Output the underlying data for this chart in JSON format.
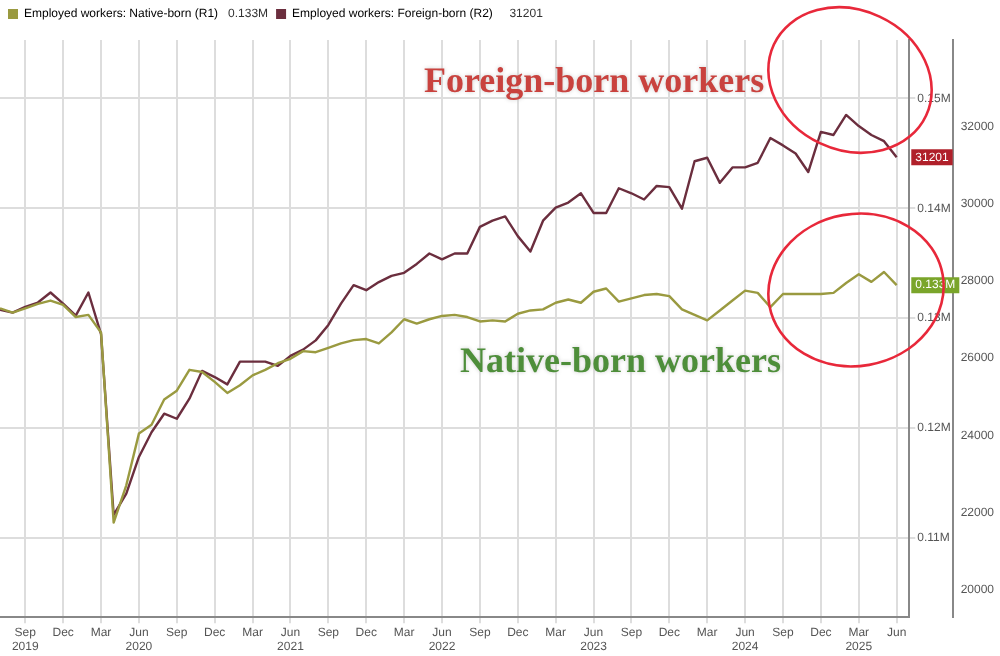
{
  "chart_data": {
    "type": "line",
    "x": [
      "2019-07",
      "2019-08",
      "2019-09",
      "2019-10",
      "2019-11",
      "2019-12",
      "2020-01",
      "2020-02",
      "2020-03",
      "2020-04",
      "2020-05",
      "2020-06",
      "2020-07",
      "2020-08",
      "2020-09",
      "2020-10",
      "2020-11",
      "2020-12",
      "2021-01",
      "2021-02",
      "2021-03",
      "2021-04",
      "2021-05",
      "2021-06",
      "2021-07",
      "2021-08",
      "2021-09",
      "2021-10",
      "2021-11",
      "2021-12",
      "2022-01",
      "2022-02",
      "2022-03",
      "2022-04",
      "2022-05",
      "2022-06",
      "2022-07",
      "2022-08",
      "2022-09",
      "2022-10",
      "2022-11",
      "2022-12",
      "2023-01",
      "2023-02",
      "2023-03",
      "2023-04",
      "2023-05",
      "2023-06",
      "2023-07",
      "2023-08",
      "2023-09",
      "2023-10",
      "2023-11",
      "2023-12",
      "2024-01",
      "2024-02",
      "2024-03",
      "2024-04",
      "2024-05",
      "2024-06",
      "2024-07",
      "2024-08",
      "2024-09",
      "2024-10",
      "2024-11",
      "2024-12",
      "2025-01",
      "2025-02",
      "2025-03",
      "2025-04",
      "2025-05",
      "2025-06"
    ],
    "series": [
      {
        "name": "Employed workers: Native-born (R1)",
        "color": "#9a9a40",
        "axis": "y",
        "values": [
          0.1309,
          0.1305,
          0.1309,
          0.1313,
          0.1316,
          0.1312,
          0.1301,
          0.1303,
          0.1287,
          0.1114,
          0.1148,
          0.1195,
          0.1203,
          0.1226,
          0.1234,
          0.1253,
          0.1251,
          0.1242,
          0.1232,
          0.1239,
          0.1248,
          0.1253,
          0.1259,
          0.1263,
          0.127,
          0.1269,
          0.1273,
          0.1277,
          0.128,
          0.1281,
          0.1277,
          0.1287,
          0.1299,
          0.1295,
          0.1299,
          0.1302,
          0.1303,
          0.1301,
          0.1297,
          0.1298,
          0.1297,
          0.1304,
          0.1307,
          0.1308,
          0.1314,
          0.1317,
          0.1314,
          0.1324,
          0.1327,
          0.1315,
          0.1318,
          0.1321,
          0.1322,
          0.132,
          0.1308,
          0.1303,
          0.1298,
          0.1307,
          0.1316,
          0.1325,
          0.1323,
          0.131,
          0.1322,
          0.1322,
          0.1322,
          0.1322,
          0.1323,
          0.1332,
          0.134,
          0.1333,
          0.1342,
          0.133
        ],
        "value_labels": [
          null,
          null,
          null,
          null,
          null,
          null,
          null,
          null,
          null,
          null,
          null,
          null,
          null,
          null,
          null,
          null,
          null,
          null,
          null,
          null,
          null,
          null,
          null,
          null,
          null,
          null,
          null,
          null,
          null,
          null,
          null,
          null,
          null,
          null,
          null,
          null,
          null,
          null,
          null,
          null,
          null,
          null,
          null,
          null,
          null,
          null,
          null,
          null,
          null,
          null,
          null,
          null,
          null,
          null,
          null,
          null,
          null,
          null,
          null,
          null,
          null,
          null,
          null,
          null,
          null,
          null,
          null,
          null,
          null,
          null,
          null,
          "0.133M"
        ]
      },
      {
        "name": "Employed workers: Foreign-born (R2)",
        "color": "#6b2e3e",
        "axis": "y2",
        "values": [
          27250,
          27180,
          27330,
          27440,
          27700,
          27410,
          27100,
          27700,
          26620,
          21940,
          22490,
          23440,
          24080,
          24560,
          24430,
          24950,
          25670,
          25510,
          25320,
          25910,
          25910,
          25910,
          25800,
          26060,
          26220,
          26460,
          26860,
          27410,
          27890,
          27760,
          27970,
          28130,
          28210,
          28440,
          28710,
          28560,
          28710,
          28710,
          29400,
          29560,
          29670,
          29160,
          28760,
          29560,
          29900,
          30030,
          30270,
          29760,
          29760,
          30400,
          30270,
          30110,
          30460,
          30430,
          29870,
          31100,
          31190,
          30540,
          30940,
          30940,
          31060,
          31700,
          31510,
          31300,
          30820,
          31860,
          31780,
          32300,
          32010,
          31780,
          31620,
          31201
        ],
        "value_labels": [
          null,
          null,
          null,
          null,
          null,
          null,
          null,
          null,
          null,
          null,
          null,
          null,
          null,
          null,
          null,
          null,
          null,
          null,
          null,
          null,
          null,
          null,
          null,
          null,
          null,
          null,
          null,
          null,
          null,
          null,
          null,
          null,
          null,
          null,
          null,
          null,
          null,
          null,
          null,
          null,
          null,
          null,
          null,
          null,
          null,
          null,
          null,
          null,
          null,
          null,
          null,
          null,
          null,
          null,
          null,
          null,
          null,
          null,
          null,
          null,
          null,
          null,
          null,
          null,
          null,
          null,
          null,
          null,
          null,
          null,
          null,
          "31201"
        ]
      }
    ],
    "xlim": [
      "2019-07",
      "2025-07"
    ],
    "xticks": [
      {
        "value": "2019-09",
        "label": "Sep\n2019"
      },
      {
        "value": "2019-12",
        "label": "Dec"
      },
      {
        "value": "2020-03",
        "label": "Mar"
      },
      {
        "value": "2020-06",
        "label": "Jun\n2020"
      },
      {
        "value": "2020-09",
        "label": "Sep"
      },
      {
        "value": "2020-12",
        "label": "Dec"
      },
      {
        "value": "2021-03",
        "label": "Mar"
      },
      {
        "value": "2021-06",
        "label": "Jun\n2021"
      },
      {
        "value": "2021-09",
        "label": "Sep"
      },
      {
        "value": "2021-12",
        "label": "Dec"
      },
      {
        "value": "2022-03",
        "label": "Mar"
      },
      {
        "value": "2022-06",
        "label": "Jun\n2022"
      },
      {
        "value": "2022-09",
        "label": "Sep"
      },
      {
        "value": "2022-12",
        "label": "Dec"
      },
      {
        "value": "2023-03",
        "label": "Mar"
      },
      {
        "value": "2023-06",
        "label": "Jun\n2023"
      },
      {
        "value": "2023-09",
        "label": "Sep"
      },
      {
        "value": "2023-12",
        "label": "Dec"
      },
      {
        "value": "2024-03",
        "label": "Mar"
      },
      {
        "value": "2024-06",
        "label": "Jun\n2024"
      },
      {
        "value": "2024-09",
        "label": "Sep"
      },
      {
        "value": "2024-12",
        "label": "Dec"
      },
      {
        "value": "2025-03",
        "label": "Mar\n2025"
      },
      {
        "value": "2025-06",
        "label": "Jun"
      }
    ],
    "ylim": [
      0.1028,
      0.1553
    ],
    "yticks": [
      {
        "value": 0.11,
        "label": "0.11M"
      },
      {
        "value": 0.12,
        "label": "0.12M"
      },
      {
        "value": 0.13,
        "label": "0.13M"
      },
      {
        "value": 0.14,
        "label": "0.14M"
      },
      {
        "value": 0.15,
        "label": "0.15M"
      }
    ],
    "y2lim": [
      19290,
      34240
    ],
    "y2ticks": [
      20000,
      22000,
      24000,
      26000,
      28000,
      30000,
      32000
    ],
    "annotations": [
      "Foreign-born workers",
      "Native-born workers"
    ],
    "grid": true,
    "legend": "top left",
    "marker": "none",
    "line_style": "solid"
  }
}
